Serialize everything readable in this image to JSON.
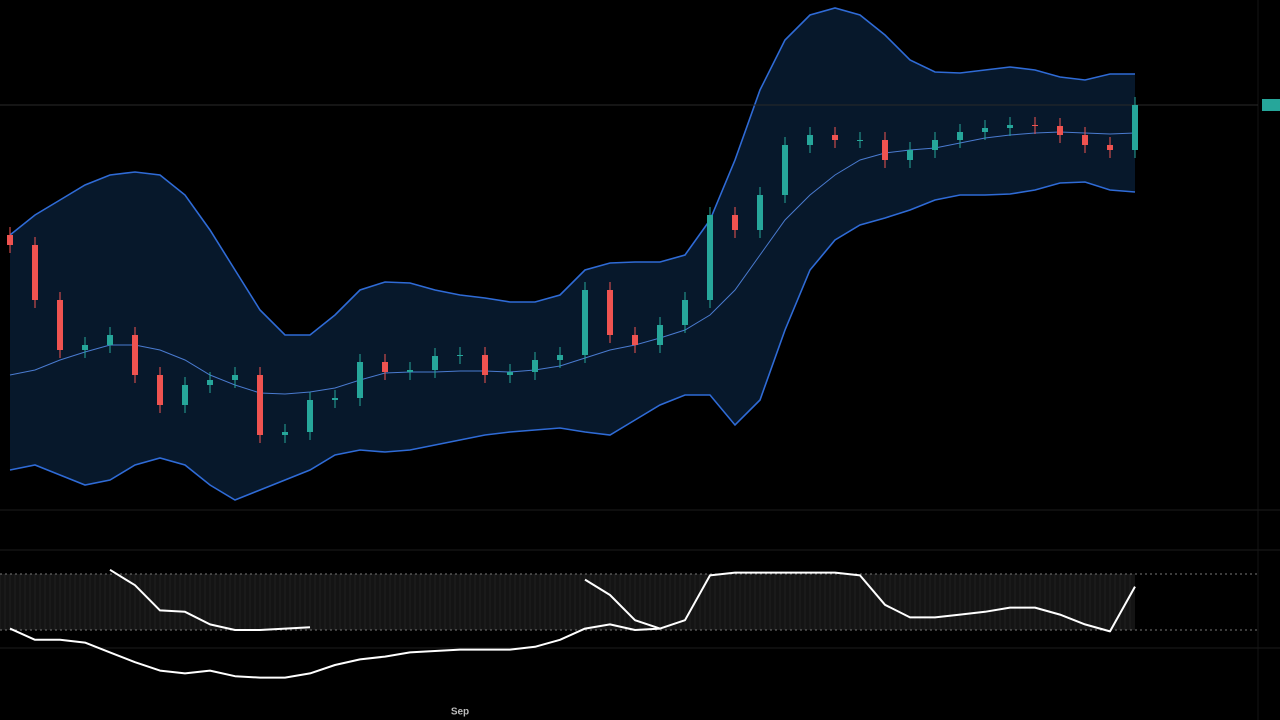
{
  "chart_data": [
    {
      "type": "candlestick",
      "categories": [
        null,
        null,
        null,
        null,
        null,
        null,
        null,
        null,
        null,
        null,
        null,
        null,
        null,
        null,
        null,
        null,
        null,
        null,
        "Sep",
        null,
        null,
        null,
        null,
        null,
        null,
        null,
        null,
        null,
        null,
        null,
        null,
        null,
        null,
        null,
        null,
        null,
        null,
        null,
        null,
        null,
        null,
        null,
        null,
        null,
        null,
        null
      ],
      "open": [
        275,
        265,
        210,
        160,
        165,
        175,
        135,
        105,
        125,
        130,
        135,
        75,
        78,
        110,
        112,
        148,
        138,
        140,
        154,
        155,
        135,
        138,
        150,
        155,
        220,
        175,
        165,
        185,
        210,
        295,
        280,
        315,
        365,
        375,
        370,
        370,
        350,
        360,
        370,
        378,
        382,
        385,
        384,
        375,
        365,
        360
      ],
      "high": [
        283,
        273,
        218,
        173,
        183,
        183,
        143,
        133,
        138,
        143,
        143,
        86,
        118,
        120,
        156,
        156,
        148,
        162,
        163,
        163,
        146,
        158,
        163,
        228,
        228,
        183,
        193,
        218,
        303,
        303,
        323,
        373,
        383,
        383,
        378,
        378,
        368,
        378,
        386,
        390,
        393,
        393,
        392,
        383,
        373,
        413
      ],
      "low": [
        257,
        202,
        152,
        152,
        157,
        127,
        97,
        97,
        117,
        122,
        67,
        67,
        70,
        102,
        104,
        130,
        130,
        132,
        146,
        127,
        127,
        130,
        142,
        147,
        167,
        157,
        157,
        177,
        202,
        272,
        272,
        307,
        357,
        362,
        362,
        342,
        342,
        352,
        362,
        370,
        374,
        376,
        367,
        357,
        352,
        352
      ],
      "close": [
        265,
        210,
        160,
        165,
        175,
        135,
        105,
        125,
        130,
        135,
        75,
        78,
        110,
        112,
        148,
        138,
        140,
        154,
        155,
        135,
        138,
        150,
        155,
        220,
        175,
        165,
        185,
        210,
        295,
        280,
        315,
        365,
        375,
        370,
        370,
        350,
        360,
        370,
        378,
        382,
        385,
        384,
        375,
        365,
        360,
        405
      ],
      "up_color": "#26a69a",
      "down_color": "#ef5350",
      "band_fill": "#07182b",
      "series": [
        {
          "color": "#2f6bd6",
          "values": [
            275,
            295,
            310,
            325,
            335,
            338,
            335,
            315,
            280,
            240,
            200,
            175,
            175,
            195,
            220,
            228,
            227,
            220,
            215,
            212,
            208,
            208,
            215,
            240,
            247,
            248,
            248,
            255,
            290,
            350,
            420,
            470,
            495,
            502,
            495,
            475,
            450,
            438,
            437,
            440,
            443,
            440,
            433,
            430,
            436,
            436
          ]
        },
        {
          "color": "#4a7bd0",
          "values": [
            135,
            140,
            150,
            158,
            165,
            165,
            160,
            150,
            135,
            125,
            117,
            116,
            118,
            122,
            130,
            137,
            138,
            138,
            139,
            139,
            138,
            140,
            144,
            152,
            160,
            165,
            172,
            180,
            195,
            220,
            255,
            290,
            315,
            335,
            350,
            357,
            360,
            362,
            367,
            372,
            375,
            377,
            378,
            377,
            376,
            377
          ]
        },
        {
          "color": "#2f6bd6",
          "values": [
            40,
            45,
            35,
            25,
            30,
            45,
            52,
            45,
            25,
            10,
            20,
            30,
            40,
            55,
            60,
            58,
            60,
            65,
            70,
            75,
            78,
            80,
            82,
            78,
            75,
            90,
            105,
            115,
            115,
            85,
            110,
            180,
            240,
            270,
            285,
            292,
            300,
            310,
            315,
            315,
            316,
            320,
            327,
            328,
            320,
            318
          ]
        }
      ],
      "ylim": [
        0,
        510
      ]
    },
    {
      "type": "line",
      "ylim": [
        0,
        100
      ],
      "levels": [
        90,
        50
      ],
      "series": [
        {
          "color": "#ffffff",
          "values": [
            null,
            null,
            null,
            null,
            93,
            82,
            64,
            63,
            54,
            50,
            50,
            51,
            52,
            null,
            null,
            null,
            null,
            null,
            null,
            null,
            null,
            null,
            null,
            86,
            75,
            57,
            51,
            57,
            89,
            91,
            91,
            91,
            91,
            91,
            89,
            68,
            59,
            59,
            61,
            63,
            66,
            66,
            61,
            54,
            49,
            81
          ]
        },
        {
          "color": "#ffffff",
          "values": [
            51,
            43,
            43,
            41,
            34,
            27,
            21,
            19,
            21,
            17,
            16,
            16,
            19,
            25,
            29,
            31,
            34,
            35,
            36,
            36,
            36,
            38,
            43,
            51,
            54,
            50,
            51,
            null,
            null,
            null,
            null,
            null,
            null,
            null,
            null,
            null,
            null,
            null,
            null,
            null,
            null,
            null,
            null,
            null,
            null,
            null
          ]
        }
      ]
    }
  ]
}
